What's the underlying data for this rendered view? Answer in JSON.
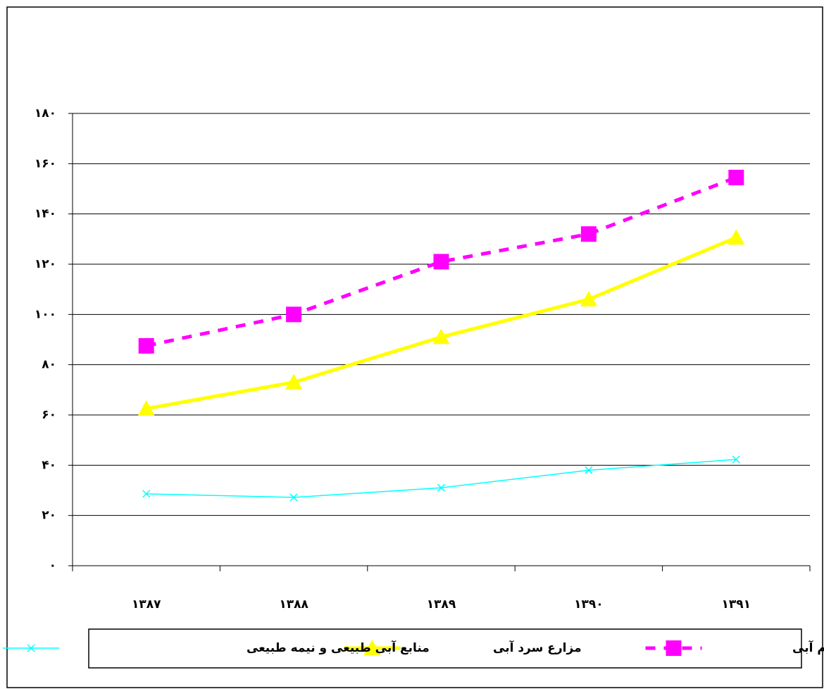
{
  "chart_data": {
    "type": "line",
    "categories": [
      "۱۳۸۷",
      "۱۳۸۸",
      "۱۳۸۹",
      "۱۳۹۰",
      "۱۳۹۱"
    ],
    "series": [
      {
        "name": "مزارع گرم آبی",
        "color": "#ff00ff",
        "marker": "square",
        "dash": true,
        "values": [
          87.5,
          100,
          121,
          132,
          154.5
        ]
      },
      {
        "name": "مزارع سرد آبی",
        "color": "#ffff00",
        "marker": "triangle",
        "dash": false,
        "values": [
          62.5,
          73,
          91,
          106,
          130.6
        ]
      },
      {
        "name": "منابع آبی طبیعی و نیمه طبیعی",
        "color": "#00ffff",
        "marker": "x",
        "dash": false,
        "values": [
          28.6,
          27.2,
          31,
          38,
          42.3
        ]
      }
    ],
    "ylim": [
      0,
      180
    ],
    "yticks": [
      {
        "value": 0,
        "label": "۰"
      },
      {
        "value": 20,
        "label": "۲۰"
      },
      {
        "value": 40,
        "label": "۴۰"
      },
      {
        "value": 60,
        "label": "۶۰"
      },
      {
        "value": 80,
        "label": "۸۰"
      },
      {
        "value": 100,
        "label": "۱۰۰"
      },
      {
        "value": 120,
        "label": "۱۲۰"
      },
      {
        "value": 140,
        "label": "۱۴۰"
      },
      {
        "value": 160,
        "label": "۱۶۰"
      },
      {
        "value": 180,
        "label": "۱۸۰"
      }
    ],
    "grid": true
  }
}
